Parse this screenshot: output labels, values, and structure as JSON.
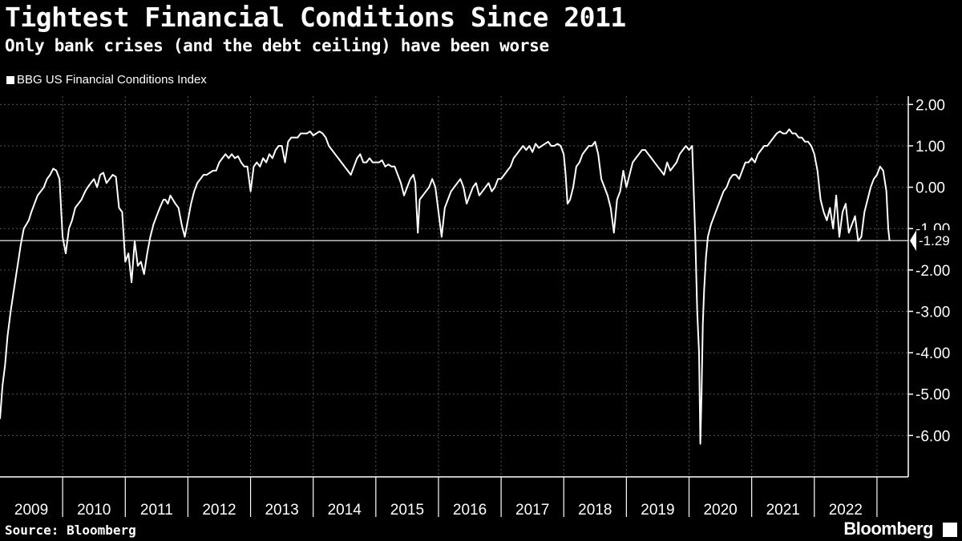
{
  "title": "Tightest Financial Conditions Since 2011",
  "subtitle": "Only bank crises (and the debt ceiling) have been worse",
  "source": "Source: Bloomberg",
  "brand": "Bloomberg",
  "chart_data": {
    "type": "line",
    "legend_placement": "top-left",
    "grid": true,
    "series": [
      {
        "name": "BBG US Financial Conditions Index",
        "color": "#ffffff",
        "x": [
          2009.0,
          2009.04,
          2009.08,
          2009.12,
          2009.17,
          2009.21,
          2009.25,
          2009.29,
          2009.33,
          2009.38,
          2009.42,
          2009.46,
          2009.5,
          2009.55,
          2009.6,
          2009.65,
          2009.7,
          2009.75,
          2009.8,
          2009.85,
          2009.9,
          2009.95,
          2010.0,
          2010.05,
          2010.1,
          2010.15,
          2010.2,
          2010.25,
          2010.3,
          2010.33,
          2010.36,
          2010.4,
          2010.45,
          2010.5,
          2010.55,
          2010.6,
          2010.65,
          2010.7,
          2010.75,
          2010.8,
          2010.85,
          2010.9,
          2010.95,
          2011.0,
          2011.05,
          2011.1,
          2011.15,
          2011.2,
          2011.25,
          2011.3,
          2011.35,
          2011.4,
          2011.45,
          2011.5,
          2011.55,
          2011.58,
          2011.61,
          2011.64,
          2011.68,
          2011.72,
          2011.76,
          2011.8,
          2011.85,
          2011.9,
          2011.95,
          2012.0,
          2012.05,
          2012.1,
          2012.15,
          2012.2,
          2012.25,
          2012.3,
          2012.35,
          2012.4,
          2012.45,
          2012.5,
          2012.55,
          2012.6,
          2012.65,
          2012.7,
          2012.75,
          2012.8,
          2012.85,
          2012.9,
          2012.95,
          2013.0,
          2013.05,
          2013.1,
          2013.15,
          2013.2,
          2013.25,
          2013.3,
          2013.35,
          2013.4,
          2013.45,
          2013.5,
          2013.55,
          2013.6,
          2013.65,
          2013.7,
          2013.75,
          2013.8,
          2013.85,
          2013.9,
          2013.95,
          2014.0,
          2014.05,
          2014.1,
          2014.15,
          2014.2,
          2014.25,
          2014.3,
          2014.35,
          2014.4,
          2014.45,
          2014.5,
          2014.55,
          2014.6,
          2014.65,
          2014.7,
          2014.75,
          2014.8,
          2014.85,
          2014.9,
          2014.95,
          2015.0,
          2015.05,
          2015.1,
          2015.15,
          2015.2,
          2015.25,
          2015.3,
          2015.35,
          2015.4,
          2015.45,
          2015.5,
          2015.55,
          2015.6,
          2015.63,
          2015.67,
          2015.7,
          2015.75,
          2015.8,
          2015.85,
          2015.9,
          2015.95,
          2016.0,
          2016.05,
          2016.1,
          2016.15,
          2016.2,
          2016.25,
          2016.3,
          2016.35,
          2016.4,
          2016.45,
          2016.5,
          2016.55,
          2016.6,
          2016.65,
          2016.7,
          2016.75,
          2016.8,
          2016.85,
          2016.9,
          2016.95,
          2017.0,
          2017.05,
          2017.1,
          2017.15,
          2017.2,
          2017.25,
          2017.3,
          2017.35,
          2017.4,
          2017.45,
          2017.5,
          2017.55,
          2017.6,
          2017.65,
          2017.7,
          2017.75,
          2017.8,
          2017.85,
          2017.9,
          2017.95,
          2018.0,
          2018.03,
          2018.06,
          2018.1,
          2018.15,
          2018.2,
          2018.25,
          2018.3,
          2018.35,
          2018.4,
          2018.45,
          2018.5,
          2018.55,
          2018.6,
          2018.65,
          2018.7,
          2018.75,
          2018.8,
          2018.85,
          2018.9,
          2018.95,
          2019.0,
          2019.05,
          2019.1,
          2019.15,
          2019.2,
          2019.25,
          2019.3,
          2019.35,
          2019.4,
          2019.45,
          2019.5,
          2019.55,
          2019.6,
          2019.65,
          2019.7,
          2019.75,
          2019.8,
          2019.85,
          2019.9,
          2019.95,
          2020.0,
          2020.05,
          2020.1,
          2020.13,
          2020.16,
          2020.18,
          2020.2,
          2020.22,
          2020.24,
          2020.27,
          2020.3,
          2020.35,
          2020.4,
          2020.45,
          2020.5,
          2020.55,
          2020.6,
          2020.65,
          2020.7,
          2020.75,
          2020.8,
          2020.85,
          2020.9,
          2020.95,
          2021.0,
          2021.05,
          2021.1,
          2021.15,
          2021.2,
          2021.25,
          2021.3,
          2021.35,
          2021.4,
          2021.45,
          2021.5,
          2021.55,
          2021.6,
          2021.65,
          2021.7,
          2021.75,
          2021.8,
          2021.85,
          2021.9,
          2021.95,
          2022.0,
          2022.05,
          2022.1,
          2022.15,
          2022.2,
          2022.25,
          2022.3,
          2022.35,
          2022.4,
          2022.45,
          2022.5,
          2022.55,
          2022.6,
          2022.65,
          2022.7,
          2022.75,
          2022.8,
          2022.85,
          2022.9,
          2022.95,
          2023.0,
          2023.05,
          2023.1,
          2023.15,
          2023.18,
          2023.2
        ],
        "y": [
          -5.6,
          -4.8,
          -4.3,
          -3.6,
          -3.0,
          -2.6,
          -2.2,
          -1.8,
          -1.4,
          -1.0,
          -0.9,
          -0.8,
          -0.6,
          -0.4,
          -0.2,
          -0.1,
          0.0,
          0.2,
          0.3,
          0.45,
          0.4,
          0.2,
          -1.2,
          -1.6,
          -1.0,
          -0.8,
          -0.5,
          -0.4,
          -0.3,
          -0.2,
          -0.1,
          0.0,
          0.1,
          0.2,
          0.0,
          0.3,
          0.35,
          0.1,
          0.2,
          0.3,
          0.25,
          -0.5,
          -0.6,
          -1.8,
          -1.6,
          -2.3,
          -1.3,
          -1.9,
          -1.8,
          -2.1,
          -1.6,
          -1.2,
          -0.9,
          -0.7,
          -0.5,
          -0.4,
          -0.3,
          -0.3,
          -0.4,
          -0.2,
          -0.3,
          -0.4,
          -0.5,
          -0.9,
          -1.2,
          -0.8,
          -0.4,
          -0.1,
          0.1,
          0.2,
          0.3,
          0.3,
          0.35,
          0.4,
          0.4,
          0.6,
          0.7,
          0.8,
          0.7,
          0.8,
          0.7,
          0.75,
          0.6,
          0.5,
          0.5,
          -0.1,
          0.5,
          0.6,
          0.5,
          0.7,
          0.6,
          0.8,
          0.7,
          0.9,
          1.0,
          1.0,
          0.6,
          1.1,
          1.2,
          1.2,
          1.2,
          1.3,
          1.3,
          1.3,
          1.35,
          1.25,
          1.3,
          1.35,
          1.3,
          1.2,
          1.0,
          0.9,
          0.8,
          0.7,
          0.6,
          0.5,
          0.4,
          0.3,
          0.5,
          0.7,
          0.8,
          0.6,
          0.6,
          0.7,
          0.6,
          0.6,
          0.6,
          0.65,
          0.5,
          0.55,
          0.5,
          0.5,
          0.3,
          0.1,
          -0.2,
          0.0,
          0.2,
          0.3,
          0.1,
          -1.1,
          -0.3,
          -0.2,
          -0.1,
          0.0,
          0.2,
          0.0,
          -0.6,
          -1.2,
          -0.5,
          -0.3,
          -0.1,
          0.0,
          0.1,
          0.2,
          0.0,
          -0.4,
          -0.2,
          0.0,
          0.1,
          -0.2,
          -0.1,
          0.0,
          0.1,
          -0.1,
          0.0,
          0.2,
          0.2,
          0.3,
          0.4,
          0.5,
          0.7,
          0.8,
          0.9,
          1.0,
          0.9,
          1.0,
          0.85,
          1.05,
          0.95,
          1.0,
          1.05,
          1.1,
          1.0,
          1.0,
          1.05,
          1.0,
          0.8,
          0.3,
          -0.4,
          -0.3,
          0.0,
          0.5,
          0.6,
          0.8,
          0.9,
          1.0,
          1.0,
          1.1,
          0.8,
          0.2,
          0.0,
          -0.2,
          -0.5,
          -1.1,
          -0.3,
          -0.1,
          0.4,
          0.0,
          0.3,
          0.6,
          0.7,
          0.8,
          0.9,
          0.9,
          0.8,
          0.7,
          0.6,
          0.5,
          0.4,
          0.3,
          0.6,
          0.4,
          0.5,
          0.6,
          0.8,
          0.9,
          1.0,
          0.9,
          1.0,
          -1.2,
          -3.0,
          -4.0,
          -6.2,
          -5.0,
          -3.3,
          -2.5,
          -1.7,
          -1.2,
          -0.9,
          -0.7,
          -0.5,
          -0.3,
          -0.1,
          0.0,
          0.2,
          0.3,
          0.3,
          0.2,
          0.4,
          0.6,
          0.6,
          0.7,
          0.6,
          0.8,
          0.9,
          1.0,
          1.0,
          1.1,
          1.2,
          1.3,
          1.35,
          1.3,
          1.3,
          1.4,
          1.3,
          1.3,
          1.2,
          1.2,
          1.1,
          1.1,
          1.0,
          0.8,
          0.4,
          -0.3,
          -0.6,
          -0.8,
          -0.5,
          -1.0,
          -0.2,
          -1.2,
          -0.6,
          -0.4,
          -1.1,
          -0.9,
          -0.7,
          -1.3,
          -1.2,
          -0.6,
          -0.3,
          0.0,
          0.2,
          0.3,
          0.5,
          0.4,
          -0.1,
          -1.0,
          -1.29
        ]
      }
    ],
    "x_ticks": [
      2009,
      2010,
      2011,
      2012,
      2013,
      2014,
      2015,
      2016,
      2017,
      2018,
      2019,
      2020,
      2021,
      2022
    ],
    "xlim": [
      2009.0,
      2023.5
    ],
    "y_ticks": [
      2.0,
      1.0,
      0.0,
      -1.0,
      -2.0,
      -3.0,
      -4.0,
      -5.0,
      -6.0
    ],
    "y_tick_labels": [
      "2.00",
      "1.00",
      "0.00",
      "-1.00",
      "-2.00",
      "-3.00",
      "-4.00",
      "-5.00",
      "-6.00"
    ],
    "ylim": [
      -7.0,
      2.2
    ],
    "y_axis_position": "right",
    "reference_line": {
      "value": -1.29
    },
    "last_value_label": "-1.29"
  }
}
